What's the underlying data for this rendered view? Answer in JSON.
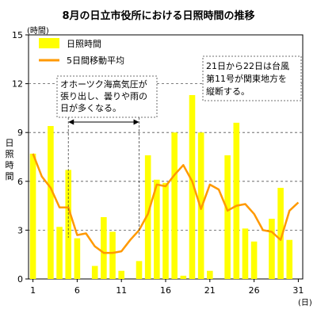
{
  "chart_data": {
    "type": "bar",
    "title": "8月の日立市役所における日照時間の推移",
    "y_unit": "(時間)",
    "ylabel": "日照時間",
    "x_unit": "(日)",
    "ylim": [
      0,
      15
    ],
    "y_ticks": [
      "0",
      "3",
      "6",
      "9",
      "12",
      "15"
    ],
    "x_ticks": [
      {
        "day": 1,
        "label": "1"
      },
      {
        "day": 6,
        "label": "6"
      },
      {
        "day": 11,
        "label": "11"
      },
      {
        "day": 16,
        "label": "16"
      },
      {
        "day": 21,
        "label": "21"
      },
      {
        "day": 26,
        "label": "26"
      },
      {
        "day": 31,
        "label": "31"
      }
    ],
    "grid": "horizontal dashed",
    "legend_position": "top-left",
    "series": [
      {
        "name": "日照時間",
        "kind": "bar",
        "color": "#ffff00",
        "x": [
          1,
          2,
          3,
          4,
          5,
          6,
          7,
          8,
          9,
          10,
          11,
          12,
          13,
          14,
          15,
          16,
          17,
          18,
          19,
          20,
          21,
          22,
          23,
          24,
          25,
          26,
          27,
          28,
          29,
          30,
          31
        ],
        "values": [
          7.7,
          0.0,
          9.4,
          3.2,
          6.7,
          2.5,
          0.0,
          0.8,
          3.8,
          2.9,
          0.5,
          0.0,
          1.1,
          7.6,
          6.1,
          5.9,
          9.0,
          0.2,
          11.3,
          9.0,
          0.5,
          0.0,
          7.6,
          9.6,
          3.1,
          2.3,
          0.0,
          3.7,
          5.6,
          2.4,
          0.0
        ]
      },
      {
        "name": "5日間移動平均",
        "kind": "line",
        "color": "#ff9900",
        "x": [
          1,
          2,
          3,
          4,
          5,
          6,
          7,
          8,
          9,
          10,
          11,
          12,
          13,
          14,
          15,
          16,
          17,
          18,
          19,
          20,
          21,
          22,
          23,
          24,
          25,
          26,
          27,
          28,
          29,
          30,
          31
        ],
        "values": [
          7.7,
          6.3,
          5.6,
          4.4,
          4.4,
          2.7,
          2.8,
          2.0,
          1.6,
          1.6,
          1.7,
          2.4,
          3.0,
          4.0,
          5.8,
          5.7,
          6.4,
          7.0,
          6.0,
          4.3,
          5.8,
          5.5,
          4.2,
          4.5,
          4.6,
          4.0,
          3.0,
          2.9,
          2.4,
          4.2,
          4.7
        ]
      }
    ],
    "annotations": [
      {
        "lines": [
          "オホーツク海高気圧が",
          "張り出し、曇りや雨の",
          "日が多くなる。"
        ],
        "range": [
          5,
          13
        ]
      },
      {
        "lines": [
          "21日から22日は台風",
          "第11号が関東地方を",
          "縦断する。"
        ]
      }
    ]
  }
}
